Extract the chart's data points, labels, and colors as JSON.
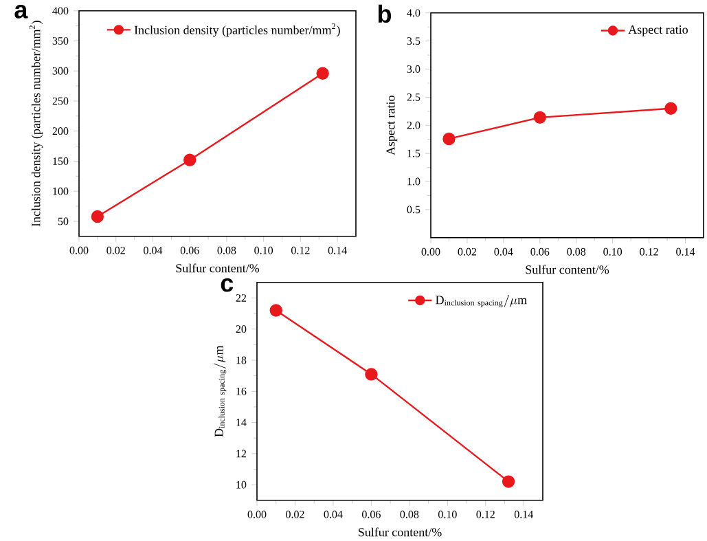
{
  "chart_data": [
    {
      "type": "line",
      "title": "a",
      "xlabel": "Sulfur content/%",
      "ylabel": "Inclusion density (particles number/mm$^{2}$)",
      "x": [
        0.01,
        0.06,
        0.132
      ],
      "xlim": [
        0,
        0.15
      ],
      "ylim": [
        25,
        400
      ],
      "xticks": [
        {
          "value": 0,
          "label": "0.00"
        },
        {
          "value": 0.02,
          "label": "0.02"
        },
        {
          "value": 0.04,
          "label": "0.04"
        },
        {
          "value": 0.06,
          "label": "0.06"
        },
        {
          "value": 0.08,
          "label": "0.08"
        },
        {
          "value": 0.1,
          "label": "0.10"
        },
        {
          "value": 0.12,
          "label": "0.12"
        },
        {
          "value": 0.14,
          "label": "0.14"
        }
      ],
      "yticks": [
        50,
        100,
        150,
        200,
        250,
        300,
        350,
        400
      ],
      "series": [
        {
          "name": "Inclusion density (particles number/mm$^{2}$)",
          "color": "#e8191c",
          "values": [
            58,
            152,
            296
          ]
        }
      ],
      "marker": "circle",
      "line_style": "solid",
      "legend": "top right",
      "grid": false
    },
    {
      "type": "line",
      "title": "b",
      "xlabel": "Sulfur content/%",
      "ylabel": "Aspect ratio",
      "x": [
        0.01,
        0.06,
        0.132
      ],
      "xlim": [
        0,
        0.15
      ],
      "ylim": [
        0,
        4
      ],
      "xticks": [
        {
          "value": 0,
          "label": "0.00"
        },
        {
          "value": 0.02,
          "label": "0.02"
        },
        {
          "value": 0.04,
          "label": "0.04"
        },
        {
          "value": 0.06,
          "label": "0.06"
        },
        {
          "value": 0.08,
          "label": "0.08"
        },
        {
          "value": 0.1,
          "label": "0.10"
        },
        {
          "value": 0.12,
          "label": "0.12"
        },
        {
          "value": 0.14,
          "label": "0.14"
        }
      ],
      "yticks": [
        0.5,
        {
          "value": 1,
          "label": "1.0"
        },
        1.5,
        {
          "value": 2,
          "label": "2.0"
        },
        2.5,
        {
          "value": 3,
          "label": "3.0"
        },
        3.5,
        {
          "value": 4,
          "label": "4.0"
        }
      ],
      "series": [
        {
          "name": "Aspect ratio",
          "color": "#e8191c",
          "values": [
            1.76,
            2.14,
            2.3
          ]
        }
      ],
      "marker": "circle",
      "line_style": "solid",
      "legend": "top right",
      "grid": false
    },
    {
      "type": "line",
      "title": "c",
      "xlabel": "Sulfur content/%",
      "ylabel": "\\mathrm{D}_{\\mathrm{inclusion\\ spacing}}/\\mu\\mathrm{m}",
      "x": [
        0.01,
        0.06,
        0.132
      ],
      "xlim": [
        0,
        0.15
      ],
      "ylim": [
        9,
        23
      ],
      "xticks": [
        {
          "value": 0,
          "label": "0.00"
        },
        {
          "value": 0.02,
          "label": "0.02"
        },
        {
          "value": 0.04,
          "label": "0.04"
        },
        {
          "value": 0.06,
          "label": "0.06"
        },
        {
          "value": 0.08,
          "label": "0.08"
        },
        {
          "value": 0.1,
          "label": "0.10"
        },
        {
          "value": 0.12,
          "label": "0.12"
        },
        {
          "value": 0.14,
          "label": "0.14"
        }
      ],
      "yticks": [
        10,
        12,
        14,
        16,
        18,
        20,
        22
      ],
      "series": [
        {
          "name": "\\mathrm{D}_{\\mathrm{inclusion\\ spacing}}/\\mu\\mathrm{m}",
          "color": "#e8191c",
          "values": [
            21.2,
            17.1,
            10.2
          ]
        }
      ],
      "marker": "circle",
      "line_style": "solid",
      "legend": "top right",
      "grid": false
    }
  ]
}
